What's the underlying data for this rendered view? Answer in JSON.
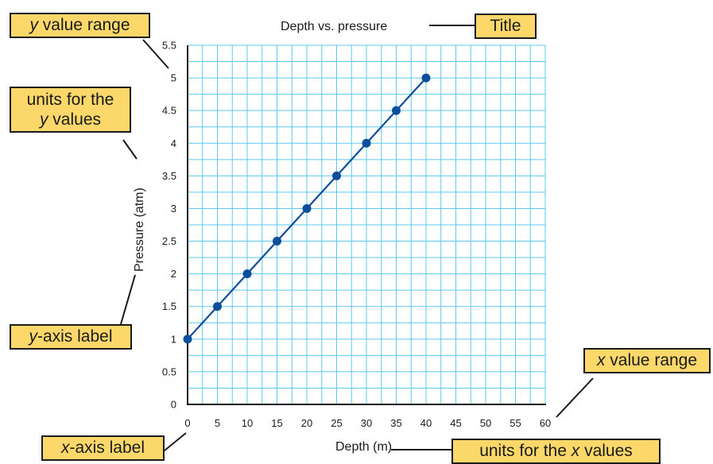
{
  "chart_data": {
    "type": "line",
    "title": "Depth vs. pressure",
    "xlabel": "Depth (m)",
    "ylabel": "Pressure (atm)",
    "xlim": [
      0,
      60
    ],
    "ylim": [
      0,
      5.5
    ],
    "grid": true,
    "x_ticks": [
      "0",
      "5",
      "10",
      "15",
      "20",
      "25",
      "30",
      "35",
      "40",
      "45",
      "50",
      "55",
      "60"
    ],
    "y_ticks": [
      "0",
      "0.5",
      "1",
      "1.5",
      "2",
      "2.5",
      "3",
      "3.5",
      "4",
      "4.5",
      "5",
      "5.5"
    ],
    "x": [
      0,
      5,
      10,
      15,
      20,
      25,
      30,
      35,
      40
    ],
    "y": [
      1,
      1.5,
      2,
      2.5,
      3,
      3.5,
      4,
      4.5,
      5
    ]
  },
  "callouts": {
    "y_range": {
      "italic": "y",
      "text": " value range"
    },
    "title": {
      "italic": "",
      "text": "Title"
    },
    "y_units": {
      "line1": "units for the",
      "italic": "y",
      "text": " values"
    },
    "y_axis_label": {
      "italic": "y",
      "text": "-axis label"
    },
    "x_range": {
      "italic": "x",
      "text": " value range"
    },
    "x_axis_label": {
      "italic": "x",
      "text": "-axis label"
    },
    "x_units": {
      "pre": "units for the ",
      "italic": "x",
      "text": " values"
    }
  },
  "colors": {
    "grid": "#5cc8ef",
    "line": "#0b4f9c",
    "point": "#0b4f9c",
    "callout_fill": "#fcd86b"
  }
}
